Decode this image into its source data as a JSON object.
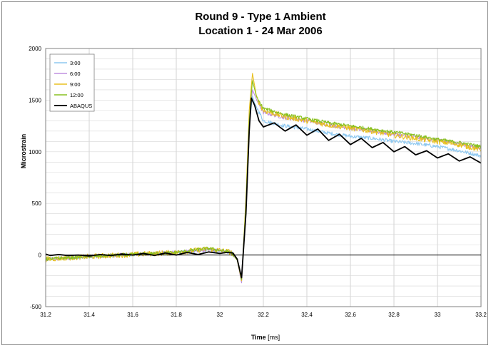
{
  "chart_data": {
    "type": "line",
    "title_line1": "Round 9 - Type 1 Ambient",
    "title_line2": "Location 1 - 24 Mar 2006",
    "xlabel": "Time",
    "xlabel_unit": "[ms]",
    "ylabel": "Microstrain",
    "xlim": [
      31.2,
      33.2
    ],
    "ylim": [
      -500,
      2000
    ],
    "x_ticks": [
      "31.2",
      "31.4",
      "31.6",
      "31.8",
      "32",
      "32.2",
      "32.4",
      "32.6",
      "32.8",
      "33",
      "33.2"
    ],
    "y_ticks": [
      "-500",
      "0",
      "500",
      "1000",
      "1500",
      "2000"
    ],
    "grid": true,
    "legend_position": "top-left",
    "series": [
      {
        "name": "3:00",
        "color": "#8ec8f0",
        "noise": 18,
        "points": [
          [
            31.2,
            -40
          ],
          [
            31.4,
            -15
          ],
          [
            31.6,
            5
          ],
          [
            31.8,
            25
          ],
          [
            31.95,
            50
          ],
          [
            32.0,
            35
          ],
          [
            32.05,
            30
          ],
          [
            32.08,
            -40
          ],
          [
            32.1,
            -230
          ],
          [
            32.12,
            500
          ],
          [
            32.135,
            1250
          ],
          [
            32.15,
            1540
          ],
          [
            32.16,
            1470
          ],
          [
            32.2,
            1300
          ],
          [
            32.3,
            1250
          ],
          [
            32.4,
            1220
          ],
          [
            32.5,
            1180
          ],
          [
            32.6,
            1150
          ],
          [
            32.7,
            1130
          ],
          [
            32.8,
            1100
          ],
          [
            32.9,
            1080
          ],
          [
            33.0,
            1050
          ],
          [
            33.1,
            1010
          ],
          [
            33.2,
            960
          ]
        ]
      },
      {
        "name": "6:00",
        "color": "#c090e0",
        "noise": 18,
        "points": [
          [
            31.2,
            -40
          ],
          [
            31.4,
            -15
          ],
          [
            31.6,
            5
          ],
          [
            31.8,
            25
          ],
          [
            31.95,
            55
          ],
          [
            32.0,
            40
          ],
          [
            32.05,
            30
          ],
          [
            32.08,
            -50
          ],
          [
            32.1,
            -270
          ],
          [
            32.12,
            500
          ],
          [
            32.135,
            1300
          ],
          [
            32.15,
            1600
          ],
          [
            32.17,
            1500
          ],
          [
            32.2,
            1380
          ],
          [
            32.3,
            1330
          ],
          [
            32.4,
            1300
          ],
          [
            32.5,
            1260
          ],
          [
            32.6,
            1230
          ],
          [
            32.7,
            1200
          ],
          [
            32.8,
            1170
          ],
          [
            32.9,
            1140
          ],
          [
            33.0,
            1110
          ],
          [
            33.1,
            1080
          ],
          [
            33.2,
            1030
          ]
        ]
      },
      {
        "name": "9:00",
        "color": "#e8c020",
        "noise": 26,
        "points": [
          [
            31.2,
            -40
          ],
          [
            31.4,
            -15
          ],
          [
            31.6,
            5
          ],
          [
            31.8,
            25
          ],
          [
            31.95,
            60
          ],
          [
            32.0,
            45
          ],
          [
            32.05,
            30
          ],
          [
            32.08,
            -50
          ],
          [
            32.1,
            -250
          ],
          [
            32.12,
            550
          ],
          [
            32.135,
            1400
          ],
          [
            32.15,
            1760
          ],
          [
            32.17,
            1520
          ],
          [
            32.2,
            1400
          ],
          [
            32.3,
            1340
          ],
          [
            32.4,
            1300
          ],
          [
            32.5,
            1260
          ],
          [
            32.6,
            1230
          ],
          [
            32.7,
            1200
          ],
          [
            32.8,
            1160
          ],
          [
            32.9,
            1130
          ],
          [
            33.0,
            1100
          ],
          [
            33.1,
            1070
          ],
          [
            33.2,
            1020
          ]
        ]
      },
      {
        "name": "12:00",
        "color": "#88c020",
        "noise": 16,
        "points": [
          [
            31.2,
            -40
          ],
          [
            31.4,
            -15
          ],
          [
            31.6,
            5
          ],
          [
            31.8,
            25
          ],
          [
            31.95,
            65
          ],
          [
            32.0,
            45
          ],
          [
            32.05,
            30
          ],
          [
            32.08,
            -50
          ],
          [
            32.1,
            -240
          ],
          [
            32.12,
            500
          ],
          [
            32.135,
            1300
          ],
          [
            32.15,
            1690
          ],
          [
            32.17,
            1520
          ],
          [
            32.2,
            1420
          ],
          [
            32.3,
            1360
          ],
          [
            32.4,
            1320
          ],
          [
            32.5,
            1280
          ],
          [
            32.6,
            1250
          ],
          [
            32.7,
            1220
          ],
          [
            32.8,
            1190
          ],
          [
            32.9,
            1160
          ],
          [
            33.0,
            1120
          ],
          [
            33.1,
            1090
          ],
          [
            33.2,
            1050
          ]
        ]
      },
      {
        "name": "ABAQUS",
        "color": "#000000",
        "noise": 0,
        "points": [
          [
            31.2,
            10
          ],
          [
            31.22,
            -5
          ],
          [
            31.26,
            5
          ],
          [
            31.3,
            -5
          ],
          [
            31.35,
            0
          ],
          [
            31.4,
            -10
          ],
          [
            31.45,
            5
          ],
          [
            31.5,
            -5
          ],
          [
            31.55,
            10
          ],
          [
            31.6,
            0
          ],
          [
            31.65,
            15
          ],
          [
            31.7,
            -5
          ],
          [
            31.75,
            20
          ],
          [
            31.8,
            0
          ],
          [
            31.85,
            25
          ],
          [
            31.9,
            5
          ],
          [
            31.95,
            30
          ],
          [
            32.0,
            15
          ],
          [
            32.03,
            25
          ],
          [
            32.06,
            20
          ],
          [
            32.08,
            -40
          ],
          [
            32.1,
            -220
          ],
          [
            32.12,
            400
          ],
          [
            32.135,
            1200
          ],
          [
            32.145,
            1520
          ],
          [
            32.16,
            1450
          ],
          [
            32.18,
            1300
          ],
          [
            32.2,
            1240
          ],
          [
            32.25,
            1280
          ],
          [
            32.3,
            1200
          ],
          [
            32.35,
            1260
          ],
          [
            32.4,
            1160
          ],
          [
            32.45,
            1220
          ],
          [
            32.5,
            1110
          ],
          [
            32.55,
            1170
          ],
          [
            32.6,
            1070
          ],
          [
            32.65,
            1130
          ],
          [
            32.7,
            1040
          ],
          [
            32.75,
            1090
          ],
          [
            32.8,
            1000
          ],
          [
            32.85,
            1050
          ],
          [
            32.9,
            970
          ],
          [
            32.95,
            1010
          ],
          [
            33.0,
            940
          ],
          [
            33.05,
            980
          ],
          [
            33.1,
            910
          ],
          [
            33.15,
            950
          ],
          [
            33.2,
            890
          ]
        ]
      }
    ]
  }
}
